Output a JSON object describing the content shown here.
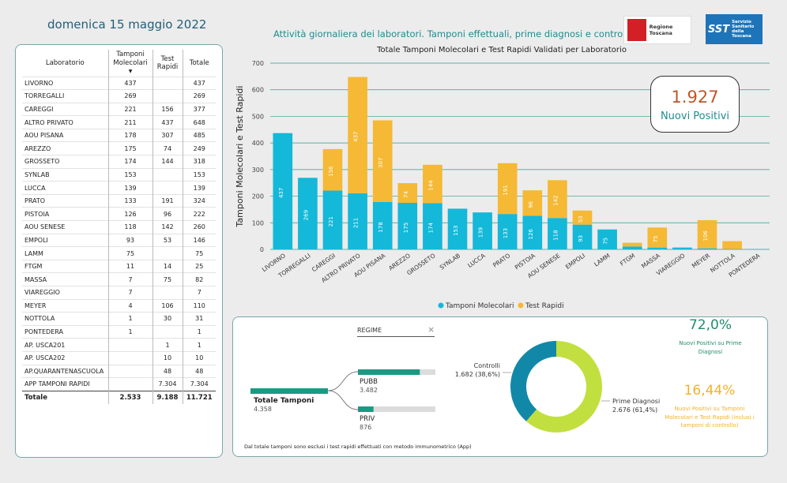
{
  "header": {
    "date": "domenica 15 maggio 2022",
    "title": "Attività giornaliera dei laboratori. Tamponi effettuali, prime diagnosi e controlli",
    "logo_rt_text": "Regione Toscana",
    "logo_sst_abbr": "SST",
    "logo_sst_text": [
      "Servizio",
      "Sanitario",
      "della",
      "Toscana"
    ]
  },
  "table": {
    "columns": [
      "Laboratorio",
      "Tamponi Molecolari",
      "Test Rapidi",
      "Totale"
    ],
    "rows": [
      [
        "LIVORNO",
        "437",
        "",
        "437"
      ],
      [
        "TORREGALLI",
        "269",
        "",
        "269"
      ],
      [
        "CAREGGI",
        "221",
        "156",
        "377"
      ],
      [
        "ALTRO PRIVATO",
        "211",
        "437",
        "648"
      ],
      [
        "AOU PISANA",
        "178",
        "307",
        "485"
      ],
      [
        "AREZZO",
        "175",
        "74",
        "249"
      ],
      [
        "GROSSETO",
        "174",
        "144",
        "318"
      ],
      [
        "SYNLAB",
        "153",
        "",
        "153"
      ],
      [
        "LUCCA",
        "139",
        "",
        "139"
      ],
      [
        "PRATO",
        "133",
        "191",
        "324"
      ],
      [
        "PISTOIA",
        "126",
        "96",
        "222"
      ],
      [
        "AOU SENESE",
        "118",
        "142",
        "260"
      ],
      [
        "EMPOLI",
        "93",
        "53",
        "146"
      ],
      [
        "LAMM",
        "75",
        "",
        "75"
      ],
      [
        "FTGM",
        "11",
        "14",
        "25"
      ],
      [
        "MASSA",
        "7",
        "75",
        "82"
      ],
      [
        "VIAREGGIO",
        "7",
        "",
        "7"
      ],
      [
        "MEYER",
        "4",
        "106",
        "110"
      ],
      [
        "NOTTOLA",
        "1",
        "30",
        "31"
      ],
      [
        "PONTEDERA",
        "1",
        "",
        "1"
      ],
      [
        "AP. USCA201",
        "",
        "1",
        "1"
      ],
      [
        "AP. USCA202",
        "",
        "10",
        "10"
      ],
      [
        "AP.QUARANTENASCUOLA",
        "",
        "48",
        "48"
      ],
      [
        "APP TAMPONI RAPIDI",
        "",
        "7.304",
        "7.304"
      ]
    ],
    "total": [
      "Totale",
      "2.533",
      "9.188",
      "11.721"
    ]
  },
  "chart_data": {
    "type": "bar",
    "stacked": true,
    "title": "Totale Tamponi Molecolari e Test Rapidi Validati per Laboratorio",
    "ylabel": "Tamponi Molecolari e Test Rapidi",
    "ylim": [
      0,
      700
    ],
    "yticks": [
      0,
      100,
      200,
      300,
      400,
      500,
      600,
      700
    ],
    "grid": true,
    "legend_position": "bottom",
    "categories": [
      "LIVORNO",
      "TORREGALLI",
      "CAREGGI",
      "ALTRO PRIVATO",
      "AOU PISANA",
      "AREZZO",
      "GROSSETO",
      "SYNLAB",
      "LUCCA",
      "PRATO",
      "PISTOIA",
      "AOU SENESE",
      "EMPOLI",
      "LAMM",
      "FTGM",
      "MASSA",
      "VIAREGGIO",
      "MEYER",
      "NOTTOLA",
      "PONTEDERA"
    ],
    "series": [
      {
        "name": "Tamponi Molecolari",
        "color": "#14b8d9",
        "values": [
          437,
          269,
          221,
          211,
          178,
          175,
          174,
          153,
          139,
          133,
          126,
          118,
          93,
          75,
          11,
          7,
          7,
          4,
          1,
          1
        ]
      },
      {
        "name": "Test Rapidi",
        "color": "#f5b935",
        "values": [
          0,
          0,
          156,
          437,
          307,
          74,
          144,
          0,
          0,
          191,
          96,
          142,
          53,
          0,
          14,
          75,
          0,
          106,
          30,
          0
        ]
      }
    ]
  },
  "kpi": {
    "value": "1.927",
    "label": "Nuovi Positivi"
  },
  "regime": {
    "title": "REGIME",
    "close": "×",
    "total_label": "Totale Tamponi",
    "total_value": "4.358",
    "pubb_label": "PUBB",
    "pubb_value": "3.482",
    "pubb_fraction": 0.799,
    "priv_label": "PRIV",
    "priv_value": "876",
    "priv_fraction": 0.201
  },
  "donut": {
    "controlli_label": "Controlli",
    "controlli_value": "1.682 (38,6%)",
    "controlli_fraction": 0.386,
    "controlli_color": "#1288a8",
    "prime_label": "Prime Diagnosi",
    "prime_value": "2.676 (61,4%)",
    "prime_fraction": 0.614,
    "prime_color": "#c1e03f"
  },
  "percentages": {
    "p1_value": "72,0%",
    "p1_label": "Nuovi Positivi su Prime Diagnosi",
    "p2_value": "16,44%",
    "p2_label": "Nuovi Positivi su Tamponi Molecolari e Test Rapidi (inclusi i tamponi di controllo)"
  },
  "note": "Dal totale tamponi sono esclusi i test rapidi effettuati con metodo immunometrico (App)"
}
